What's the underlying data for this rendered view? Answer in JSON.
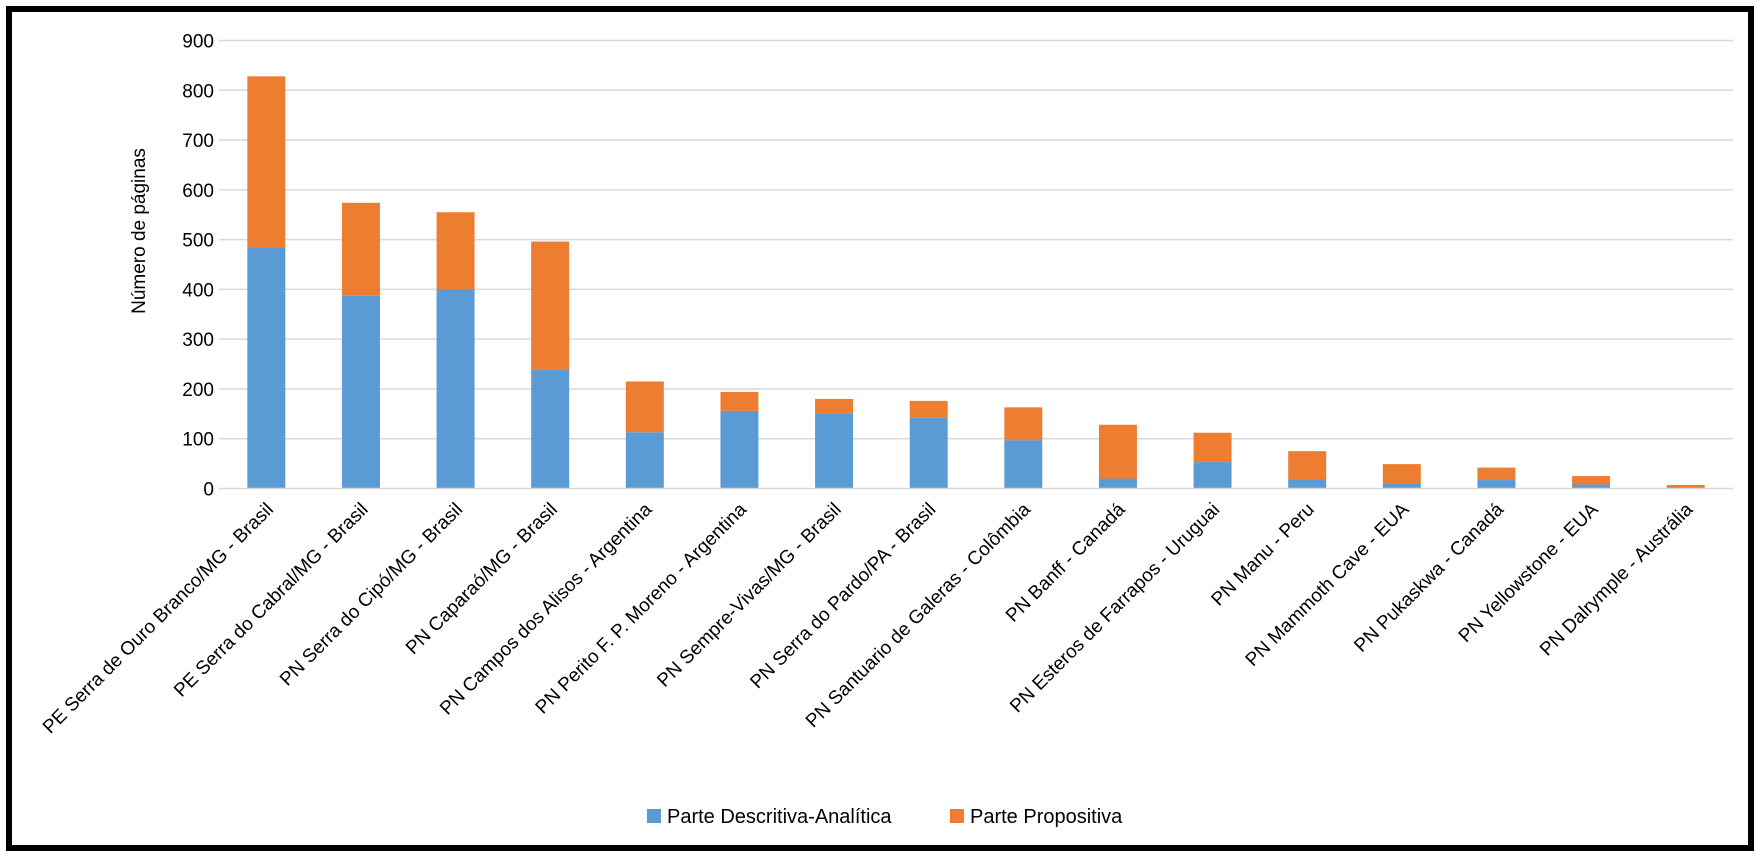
{
  "chart_data": {
    "type": "bar",
    "stacked": true,
    "title": "",
    "xlabel": "",
    "ylabel": "Número de páginas",
    "ylim": [
      0,
      900
    ],
    "yticks": [
      0,
      100,
      200,
      300,
      400,
      500,
      600,
      700,
      800,
      900
    ],
    "grid": true,
    "legend_position": "bottom",
    "categories": [
      "PE Serra de Ouro Branco/MG - Brasil",
      "PE Serra do Cabral/MG - Brasil",
      "PN Serra do Cipó/MG - Brasil",
      "PN Caparaó/MG - Brasil",
      "PN Campos dos Alisos - Argentina",
      "PN Perito F. P. Moreno - Argentina",
      "PN Sempre-Vivas/MG - Brasil",
      "PN Serra do Pardo/PA - Brasil",
      "PN Santuario de Galeras - Colômbia",
      "PN Banff - Canadá",
      "PN Esteros de Farrapos  - Uruguai",
      "PN Manu - Peru",
      "PN Mammoth Cave - EUA",
      "PN Pukaskwa - Canadá",
      "PN Yellowstone - EUA",
      "PN Dalrymple - Austrália"
    ],
    "series": [
      {
        "name": "Parte Descritiva-Analítica",
        "color": "#5B9BD5",
        "values": [
          485,
          387,
          400,
          238,
          113,
          156,
          151,
          142,
          97,
          20,
          53,
          19,
          9,
          17,
          8,
          2
        ]
      },
      {
        "name": "Parte Propositiva",
        "color": "#ED7D31",
        "values": [
          343,
          187,
          155,
          258,
          102,
          38,
          29,
          34,
          66,
          108,
          59,
          56,
          40,
          25,
          17,
          5
        ]
      }
    ]
  }
}
